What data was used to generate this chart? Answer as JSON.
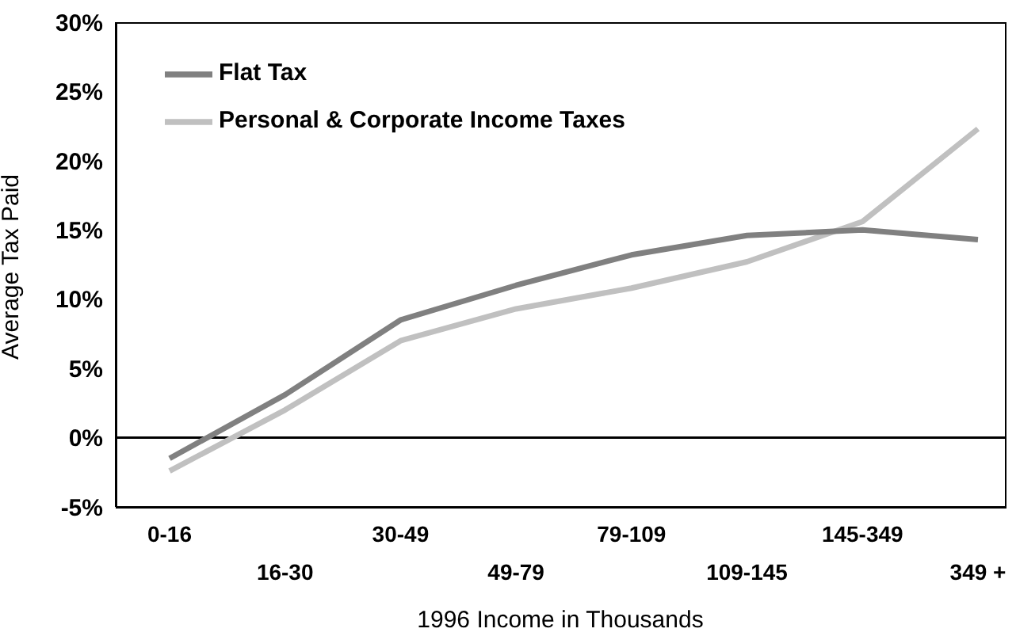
{
  "chart_data": {
    "type": "line",
    "xlabel": "1996 Income in Thousands",
    "ylabel": "Average Tax Paid",
    "categories": [
      "0-16",
      "16-30",
      "30-49",
      "49-79",
      "79-109",
      "109-145",
      "145-349",
      "349 +"
    ],
    "series": [
      {
        "name": "Personal & Corporate Income Taxes",
        "color": "#c0c0c0",
        "values": [
          -2.4,
          2.0,
          7.0,
          9.3,
          10.8,
          12.7,
          15.6,
          22.3
        ]
      },
      {
        "name": "Flat Tax",
        "color": "#808080",
        "values": [
          -1.5,
          3.1,
          8.5,
          11.0,
          13.2,
          14.6,
          15.0,
          14.3
        ]
      }
    ],
    "ylim": [
      -5,
      30
    ],
    "yticks": [
      {
        "value": -5,
        "label": "-5%"
      },
      {
        "value": 0,
        "label": "0%"
      },
      {
        "value": 5,
        "label": "5%"
      },
      {
        "value": 10,
        "label": "10%"
      },
      {
        "value": 15,
        "label": "15%"
      },
      {
        "value": 20,
        "label": "20%"
      },
      {
        "value": 25,
        "label": "25%"
      },
      {
        "value": 30,
        "label": "30%"
      }
    ],
    "ref_lines": [
      {
        "axis": "y",
        "value": 0,
        "color": "#000000"
      }
    ],
    "legend": "top left",
    "grid": false,
    "marker": "none",
    "line_style": "solid"
  }
}
